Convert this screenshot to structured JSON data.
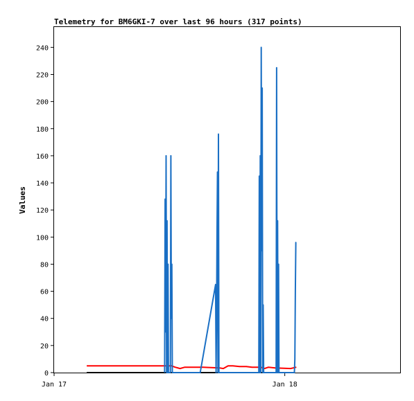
{
  "chart_data": {
    "type": "line",
    "title": "Telemetry for BM6GKI-7 over last 96 hours (317 points)",
    "xlabel": "",
    "ylabel": "Values",
    "x_range_hours": [
      0,
      36
    ],
    "x_ticks": [
      {
        "label": "Jan 17",
        "hour": 0
      },
      {
        "label": "Jan 18",
        "hour": 24
      }
    ],
    "ylim": [
      0,
      255
    ],
    "y_ticks": [
      0,
      20,
      40,
      60,
      80,
      100,
      120,
      140,
      160,
      180,
      200,
      220,
      240
    ],
    "grid": false,
    "legend": "none",
    "series": [
      {
        "color": "#000000",
        "x": [
          3.4,
          25.0
        ],
        "y": [
          0,
          0
        ]
      },
      {
        "color": "#ff0000",
        "x": [
          3.4,
          12.2,
          12.6,
          13.1,
          13.6,
          15.5,
          17.2,
          17.6,
          18.1,
          18.6,
          19.3,
          20.0,
          20.6,
          21.5,
          21.9,
          22.3,
          23.0,
          24.6,
          25.2
        ],
        "y": [
          5.0,
          5.0,
          4.0,
          3.0,
          4.0,
          4.0,
          3.5,
          3.0,
          5.0,
          5.0,
          4.5,
          4.5,
          4.0,
          4.0,
          3.0,
          4.0,
          3.5,
          3.0,
          4.0
        ]
      },
      {
        "color": "#1a6fc4",
        "x": [
          11.5,
          11.55,
          11.6,
          11.65,
          11.7,
          11.75,
          11.8,
          11.85,
          11.9,
          11.95,
          12.0,
          12.05,
          12.1,
          12.15,
          12.2,
          12.25,
          12.3,
          12.35,
          12.4,
          15.2,
          16.8,
          16.85,
          16.9,
          16.95,
          17.0,
          17.05,
          17.1,
          17.15,
          17.2,
          17.25,
          21.3,
          21.35,
          21.4,
          21.45,
          21.5,
          21.55,
          21.6,
          21.65,
          21.7,
          21.75,
          21.8,
          21.85,
          21.9,
          21.95,
          22.0,
          22.05,
          23.1,
          23.15,
          23.2,
          23.25,
          23.3,
          23.35,
          23.4,
          23.45,
          23.5,
          23.55,
          23.6,
          23.65,
          23.7,
          23.75,
          23.8,
          24.3,
          25.0,
          25.05,
          25.1,
          25.15,
          25.2
        ],
        "y": [
          0,
          128,
          30,
          160,
          0,
          112,
          0,
          80,
          0,
          0,
          0,
          0,
          0,
          160,
          40,
          80,
          0,
          0,
          0,
          0,
          65,
          0,
          40,
          100,
          148,
          0,
          176,
          0,
          0,
          0,
          0,
          145,
          0,
          160,
          0,
          240,
          90,
          210,
          0,
          50,
          0,
          0,
          0,
          0,
          0,
          0,
          0,
          225,
          0,
          112,
          0,
          80,
          0,
          0,
          0,
          0,
          0,
          0,
          0,
          0,
          0,
          0,
          0,
          10,
          60,
          96,
          96
        ]
      }
    ]
  }
}
